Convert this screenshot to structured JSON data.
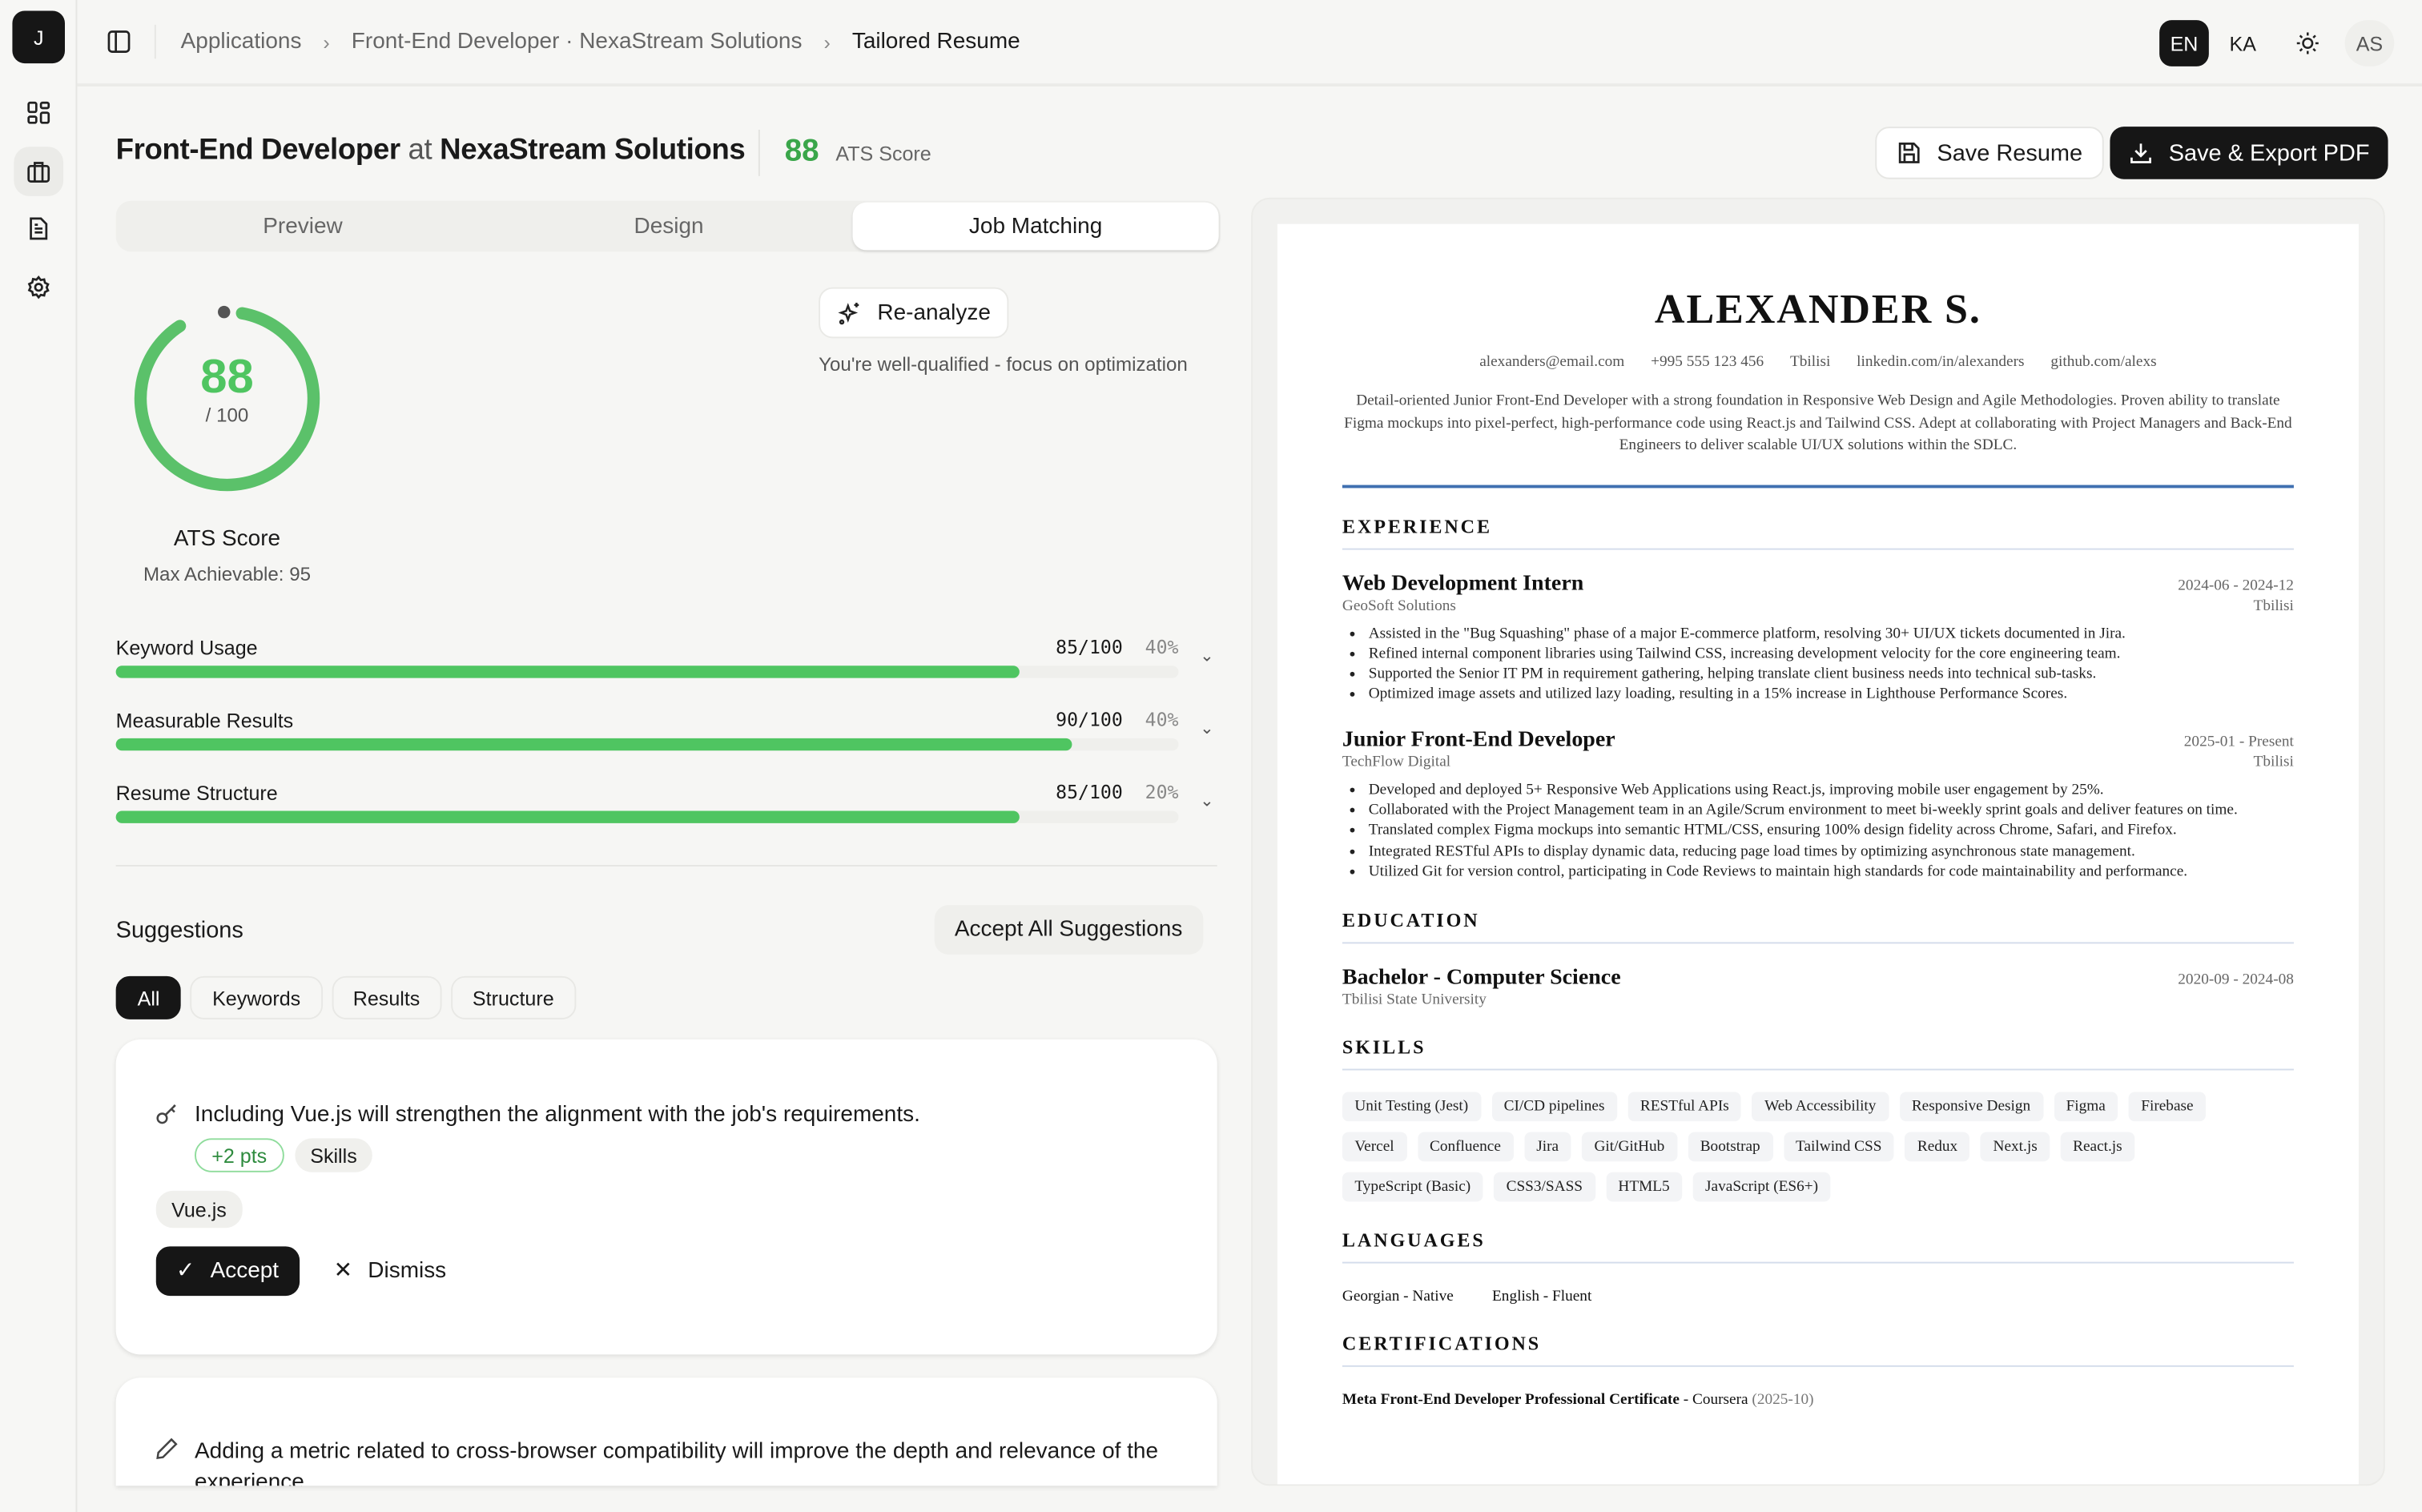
{
  "sidebar": {
    "logo": "J",
    "items": [
      {
        "icon": "dashboard-icon"
      },
      {
        "icon": "briefcase-icon",
        "active": true
      },
      {
        "icon": "document-icon"
      },
      {
        "icon": "gear-icon"
      }
    ]
  },
  "topbar": {
    "breadcrumb": [
      "Applications",
      "Front-End Developer · NexaStream Solutions",
      "Tailored Resume"
    ],
    "lang_en": "EN",
    "lang_ka": "KA",
    "avatar": "AS"
  },
  "header": {
    "role": "Front-End Developer",
    "at": "at",
    "company": "NexaStream Solutions",
    "score": "88",
    "score_label": "ATS Score",
    "save": "Save Resume",
    "export": "Save & Export PDF"
  },
  "tabs": [
    "Preview",
    "Design",
    "Job Matching"
  ],
  "active_tab": "Job Matching",
  "ats": {
    "score": 88,
    "score_text": "88",
    "out_of": "/ 100",
    "label": "ATS Score",
    "max": "Max Achievable: 95",
    "reanalyze": "Re-analyze",
    "message": "You're well-qualified - focus on optimization",
    "accent": "#4fc561"
  },
  "metrics": [
    {
      "label": "Keyword Usage",
      "score": "85/100",
      "weight": "40%",
      "value": 85
    },
    {
      "label": "Measurable Results",
      "score": "90/100",
      "weight": "40%",
      "value": 90
    },
    {
      "label": "Resume Structure",
      "score": "85/100",
      "weight": "20%",
      "value": 85
    }
  ],
  "suggestions": {
    "title": "Suggestions",
    "accept_all": "Accept All Suggestions",
    "filters": [
      "All",
      "Keywords",
      "Results",
      "Structure"
    ],
    "items": [
      {
        "text": "Including Vue.js will strengthen the alignment with the job's requirements.",
        "pts": "+2 pts",
        "category": "Skills",
        "keyword": "Vue.js",
        "accept": "Accept",
        "dismiss": "Dismiss"
      },
      {
        "text": "Adding a metric related to cross-browser compatibility will improve the depth and relevance of the experience."
      }
    ]
  },
  "resume": {
    "name": "ALEXANDER S.",
    "contact": [
      "alexanders@email.com",
      "+995 555 123 456",
      "Tbilisi",
      "linkedin.com/in/alexanders",
      "github.com/alexs"
    ],
    "summary": "Detail-oriented Junior Front-End Developer with a strong foundation in Responsive Web Design and Agile Methodologies. Proven ability to translate Figma mockups into pixel-perfect, high-performance code using React.js and Tailwind CSS. Adept at collaborating with Project Managers and Back-End Engineers to deliver scalable UI/UX solutions within the SDLC.",
    "experience_title": "EXPERIENCE",
    "jobs": [
      {
        "title": "Web Development Intern",
        "dates": "2024-06 - 2024-12",
        "company": "GeoSoft Solutions",
        "location": "Tbilisi",
        "bullets": [
          "Assisted in the \"Bug Squashing\" phase of a major E-commerce platform, resolving 30+ UI/UX tickets documented in Jira.",
          "Refined internal component libraries using Tailwind CSS, increasing development velocity for the core engineering team.",
          "Supported the Senior IT PM in requirement gathering, helping translate client business needs into technical sub-tasks.",
          "Optimized image assets and utilized lazy loading, resulting in a 15% increase in Lighthouse Performance Scores."
        ]
      },
      {
        "title": "Junior Front-End Developer",
        "dates": "2025-01 - Present",
        "company": "TechFlow Digital",
        "location": "Tbilisi",
        "bullets": [
          "Developed and deployed 5+ Responsive Web Applications using React.js, improving mobile user engagement by 25%.",
          "Collaborated with the Project Management team in an Agile/Scrum environment to meet bi-weekly sprint goals and deliver features on time.",
          "Translated complex Figma mockups into semantic HTML/CSS, ensuring 100% design fidelity across Chrome, Safari, and Firefox.",
          "Integrated RESTful APIs to display dynamic data, reducing page load times by optimizing asynchronous state management.",
          "Utilized Git for version control, participating in Code Reviews to maintain high standards for code maintainability and performance."
        ]
      }
    ],
    "education_title": "EDUCATION",
    "education": {
      "degree": "Bachelor - Computer Science",
      "dates": "2020-09 - 2024-08",
      "school": "Tbilisi State University"
    },
    "skills_title": "SKILLS",
    "skills": [
      "Unit Testing (Jest)",
      "CI/CD pipelines",
      "RESTful APIs",
      "Web Accessibility",
      "Responsive Design",
      "Figma",
      "Firebase",
      "Vercel",
      "Confluence",
      "Jira",
      "Git/GitHub",
      "Bootstrap",
      "Tailwind CSS",
      "Redux",
      "Next.js",
      "React.js",
      "TypeScript (Basic)",
      "CSS3/SASS",
      "HTML5",
      "JavaScript (ES6+)"
    ],
    "languages_title": "LANGUAGES",
    "languages": [
      "Georgian - Native",
      "English - Fluent"
    ],
    "certifications_title": "CERTIFICATIONS",
    "certification": {
      "name": "Meta Front-End Developer Professional Certificate",
      "issuer": " - Coursera",
      "date": " (2025-10)"
    }
  }
}
